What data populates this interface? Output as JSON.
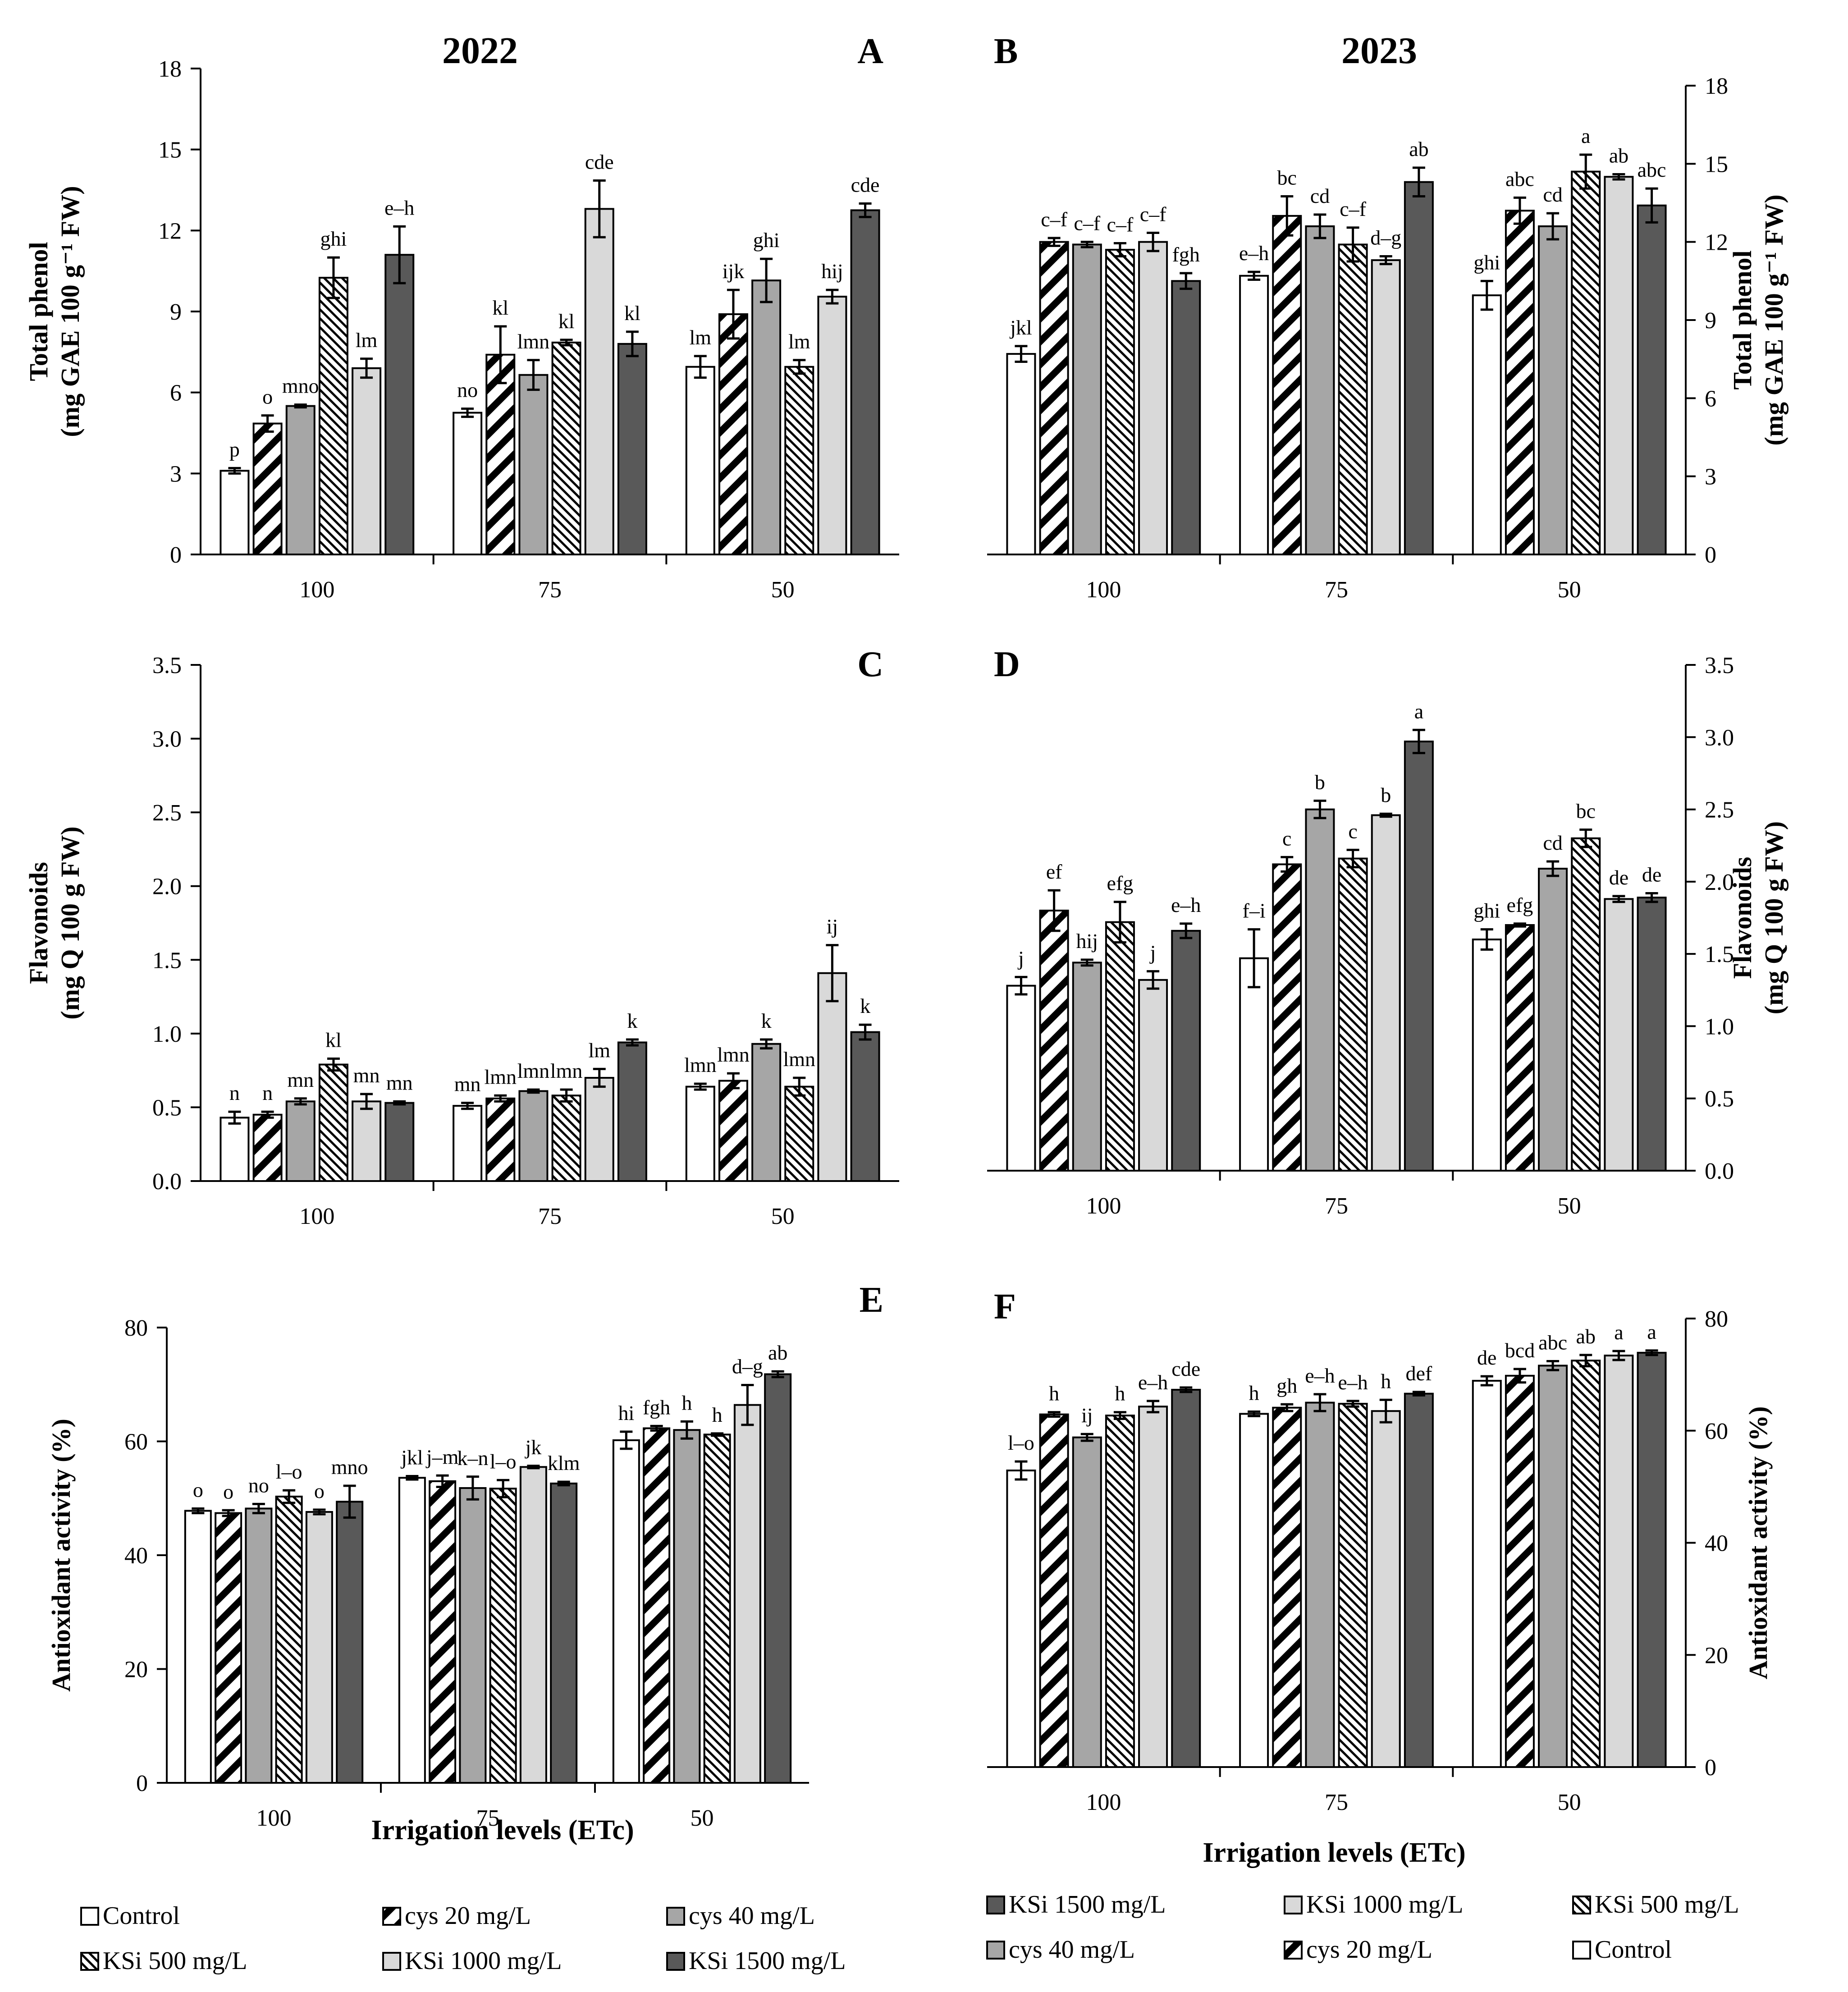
{
  "chart_data": [
    {
      "panel": "A",
      "type": "bar",
      "title": "2022",
      "ylabel": [
        "Total phenol",
        "(mg GAE 100 g⁻¹ FW)"
      ],
      "xlabel": "",
      "ylim": [
        0,
        18
      ],
      "yticks": [
        "0",
        "3",
        "6",
        "9",
        "12",
        "15",
        "18"
      ],
      "categories": [
        "100",
        "75",
        "50"
      ],
      "series": [
        {
          "name": "Control",
          "values": [
            3.1,
            5.25,
            6.95
          ],
          "errors": [
            0.1,
            0.15,
            0.4
          ],
          "letters": [
            "p",
            "no",
            "lm"
          ]
        },
        {
          "name": "cys 20 mg/L",
          "values": [
            4.85,
            7.4,
            8.9
          ],
          "errors": [
            0.3,
            1.05,
            0.9
          ],
          "letters": [
            "o",
            "kl",
            "ijk"
          ]
        },
        {
          "name": "cys 40 mg/L",
          "values": [
            5.5,
            6.65,
            10.15
          ],
          "errors": [
            0.05,
            0.55,
            0.8
          ],
          "letters": [
            "mno",
            "lmn",
            "ghi"
          ]
        },
        {
          "name": "KSi 500 mg/L",
          "values": [
            10.25,
            7.85,
            6.95
          ],
          "errors": [
            0.75,
            0.1,
            0.25
          ],
          "letters": [
            "ghi",
            "kl",
            "lm"
          ]
        },
        {
          "name": "KSi 1000 mg/L",
          "values": [
            6.9,
            12.8,
            9.55
          ],
          "errors": [
            0.35,
            1.05,
            0.25
          ],
          "letters": [
            "lm",
            "cde",
            "hij"
          ]
        },
        {
          "name": "KSi 1500 mg/L",
          "values": [
            11.1,
            7.8,
            12.75
          ],
          "errors": [
            1.05,
            0.45,
            0.25
          ],
          "letters": [
            "e–h",
            "kl",
            "cde"
          ]
        }
      ]
    },
    {
      "panel": "B",
      "type": "bar",
      "title": "2023",
      "ylabel": [
        "Total phenol",
        "(mg GAE 100 g⁻¹ FW)"
      ],
      "xlabel": "",
      "ylim": [
        0,
        18
      ],
      "yticks": [
        "0",
        "3",
        "6",
        "9",
        "12",
        "15",
        "18"
      ],
      "categories": [
        "100",
        "75",
        "50"
      ],
      "series": [
        {
          "name": "Control",
          "values": [
            7.7,
            10.7,
            9.95
          ],
          "errors": [
            0.3,
            0.15,
            0.55
          ],
          "letters": [
            "jkl",
            "e–h",
            "ghi"
          ]
        },
        {
          "name": "cys 20 mg/L",
          "values": [
            12.0,
            13.0,
            13.2
          ],
          "errors": [
            0.15,
            0.75,
            0.5
          ],
          "letters": [
            "c–f",
            "bc",
            "abc"
          ]
        },
        {
          "name": "cys 40 mg/L",
          "values": [
            11.9,
            12.6,
            12.6
          ],
          "errors": [
            0.1,
            0.45,
            0.5
          ],
          "letters": [
            "c–f",
            "cd",
            "cd"
          ]
        },
        {
          "name": "KSi 500 mg/L",
          "values": [
            11.7,
            11.9,
            14.7
          ],
          "errors": [
            0.25,
            0.65,
            0.65
          ],
          "letters": [
            "c–f",
            "c–f",
            "a"
          ]
        },
        {
          "name": "KSi 1000 mg/L",
          "values": [
            12.0,
            11.3,
            14.5
          ],
          "errors": [
            0.35,
            0.15,
            0.1
          ],
          "letters": [
            "c–f",
            "d–g",
            "ab"
          ]
        },
        {
          "name": "KSi 1500 mg/L",
          "values": [
            10.5,
            14.3,
            13.4
          ],
          "errors": [
            0.3,
            0.55,
            0.65
          ],
          "letters": [
            "fgh",
            "ab",
            "abc"
          ]
        }
      ]
    },
    {
      "panel": "C",
      "type": "bar",
      "title": "",
      "ylabel": [
        "Flavonoids",
        "(mg Q 100 g FW)"
      ],
      "xlabel": "",
      "ylim": [
        0,
        3.5
      ],
      "yticks": [
        "0.0",
        "0.5",
        "1.0",
        "1.5",
        "2.0",
        "2.5",
        "3.0",
        "3.5"
      ],
      "categories": [
        "100",
        "75",
        "50"
      ],
      "series": [
        {
          "name": "Control",
          "values": [
            0.43,
            0.51,
            0.64
          ],
          "errors": [
            0.04,
            0.02,
            0.02
          ],
          "letters": [
            "n",
            "mn",
            "lmn"
          ]
        },
        {
          "name": "cys 20 mg/L",
          "values": [
            0.45,
            0.56,
            0.68
          ],
          "errors": [
            0.02,
            0.02,
            0.05
          ],
          "letters": [
            "n",
            "lmn",
            "lmn"
          ]
        },
        {
          "name": "cys 40 mg/L",
          "values": [
            0.54,
            0.61,
            0.93
          ],
          "errors": [
            0.02,
            0.01,
            0.03
          ],
          "letters": [
            "mn",
            "lmn",
            "k"
          ]
        },
        {
          "name": "KSi 500 mg/L",
          "values": [
            0.79,
            0.58,
            0.64
          ],
          "errors": [
            0.04,
            0.04,
            0.06
          ],
          "letters": [
            "kl",
            "lmn",
            "lmn"
          ]
        },
        {
          "name": "KSi 1000 mg/L",
          "values": [
            0.54,
            0.7,
            1.41
          ],
          "errors": [
            0.05,
            0.06,
            0.19
          ],
          "letters": [
            "mn",
            "lm",
            "ij"
          ]
        },
        {
          "name": "KSi 1500 mg/L",
          "values": [
            0.53,
            0.94,
            1.01
          ],
          "errors": [
            0.01,
            0.02,
            0.05
          ],
          "letters": [
            "mn",
            "k",
            "k"
          ]
        }
      ]
    },
    {
      "panel": "D",
      "type": "bar",
      "title": "",
      "ylabel": [
        "Flavonoids",
        "(mg Q 100 g FW)"
      ],
      "xlabel": "",
      "ylim": [
        0,
        3.5
      ],
      "yticks": [
        "0.0",
        "0.5",
        "1.0",
        "1.5",
        "2.0",
        "2.5",
        "3.0",
        "3.5"
      ],
      "categories": [
        "100",
        "75",
        "50"
      ],
      "series": [
        {
          "name": "Control",
          "values": [
            1.28,
            1.47,
            1.6
          ],
          "errors": [
            0.06,
            0.2,
            0.07
          ],
          "letters": [
            "j",
            "f–i",
            "ghi"
          ]
        },
        {
          "name": "cys 20 mg/L",
          "values": [
            1.8,
            2.12,
            1.7
          ],
          "errors": [
            0.14,
            0.05,
            0.01
          ],
          "letters": [
            "ef",
            "c",
            "efg"
          ]
        },
        {
          "name": "cys 40 mg/L",
          "values": [
            1.44,
            2.5,
            2.09
          ],
          "errors": [
            0.02,
            0.06,
            0.05
          ],
          "letters": [
            "hij",
            "b",
            "cd"
          ]
        },
        {
          "name": "KSi 500 mg/L",
          "values": [
            1.72,
            2.16,
            2.3
          ],
          "errors": [
            0.14,
            0.06,
            0.06
          ],
          "letters": [
            "efg",
            "c",
            "bc"
          ]
        },
        {
          "name": "KSi 1000 mg/L",
          "values": [
            1.32,
            2.46,
            1.88
          ],
          "errors": [
            0.06,
            0.01,
            0.02
          ],
          "letters": [
            "j",
            "b",
            "de"
          ]
        },
        {
          "name": "KSi 1500 mg/L",
          "values": [
            1.66,
            2.97,
            1.89
          ],
          "errors": [
            0.05,
            0.08,
            0.03
          ],
          "letters": [
            "e–h",
            "a",
            "de"
          ]
        }
      ]
    },
    {
      "panel": "E",
      "type": "bar",
      "title": "",
      "ylabel": [
        "Antioxidant activity (%)"
      ],
      "xlabel": "Irrigation levels (ETc)",
      "ylim": [
        0,
        80
      ],
      "yticks": [
        "0",
        "20",
        "40",
        "60",
        "80"
      ],
      "categories": [
        "100",
        "75",
        "50"
      ],
      "series": [
        {
          "name": "Control",
          "values": [
            47.8,
            53.6,
            60.2
          ],
          "errors": [
            0.4,
            0.3,
            1.5
          ],
          "letters": [
            "o",
            "jkl",
            "hi"
          ]
        },
        {
          "name": "cys 20 mg/L",
          "values": [
            47.4,
            53.0,
            62.3
          ],
          "errors": [
            0.5,
            1.0,
            0.4
          ],
          "letters": [
            "o",
            "j–m",
            "fgh"
          ]
        },
        {
          "name": "cys 40 mg/L",
          "values": [
            48.2,
            51.8,
            62.0
          ],
          "errors": [
            0.8,
            2.0,
            1.5
          ],
          "letters": [
            "no",
            "k–n",
            "h"
          ]
        },
        {
          "name": "KSi 500 mg/L",
          "values": [
            50.3,
            51.7,
            61.2
          ],
          "errors": [
            1.1,
            1.5,
            0.2
          ],
          "letters": [
            "l–o",
            "l–o",
            "h"
          ]
        },
        {
          "name": "KSi 1000 mg/L",
          "values": [
            47.6,
            55.5,
            66.4
          ],
          "errors": [
            0.4,
            0.2,
            3.5
          ],
          "letters": [
            "o",
            "jk",
            "d–g"
          ]
        },
        {
          "name": "KSi 1500 mg/L",
          "values": [
            49.4,
            52.6,
            71.8
          ],
          "errors": [
            2.8,
            0.3,
            0.5
          ],
          "letters": [
            "mno",
            "klm",
            "ab"
          ]
        }
      ]
    },
    {
      "panel": "F",
      "type": "bar",
      "title": "",
      "ylabel": [
        "Antioxidant activity (%)"
      ],
      "xlabel": "Irrigation levels (ETc)",
      "ylim": [
        0,
        80
      ],
      "yticks": [
        "0",
        "20",
        "40",
        "60",
        "80"
      ],
      "categories": [
        "100",
        "75",
        "50"
      ],
      "series": [
        {
          "name": "Control",
          "values": [
            52.9,
            63.0,
            68.9
          ],
          "errors": [
            1.6,
            0.4,
            0.8
          ],
          "letters": [
            "l–o",
            "h",
            "de"
          ]
        },
        {
          "name": "cys 20 mg/L",
          "values": [
            62.9,
            64.1,
            69.8
          ],
          "errors": [
            0.4,
            0.6,
            1.2
          ],
          "letters": [
            "h",
            "gh",
            "bcd"
          ]
        },
        {
          "name": "cys 40 mg/L",
          "values": [
            58.8,
            65.0,
            71.6
          ],
          "errors": [
            0.6,
            1.5,
            0.8
          ],
          "letters": [
            "ij",
            "e–h",
            "abc"
          ]
        },
        {
          "name": "KSi 500 mg/L",
          "values": [
            62.7,
            64.8,
            72.5
          ],
          "errors": [
            0.6,
            0.5,
            1.0
          ],
          "letters": [
            "h",
            "e–h",
            "ab"
          ]
        },
        {
          "name": "KSi 1000 mg/L",
          "values": [
            64.3,
            63.5,
            73.4
          ],
          "errors": [
            1.0,
            2.0,
            0.8
          ],
          "letters": [
            "e–h",
            "h",
            "a"
          ]
        },
        {
          "name": "KSi 1500 mg/L",
          "values": [
            67.3,
            66.6,
            73.9
          ],
          "errors": [
            0.4,
            0.3,
            0.4
          ],
          "letters": [
            "cde",
            "def",
            "a"
          ]
        }
      ]
    }
  ],
  "legend_left": [
    "Control",
    "cys 20 mg/L",
    "cys 40 mg/L",
    "KSi 500 mg/L",
    "KSi 1000 mg/L",
    "KSi 1500 mg/L"
  ],
  "legend_right": [
    "KSi 1500 mg/L",
    "KSi 1000 mg/L",
    "KSi 500 mg/L",
    "cys 40 mg/L",
    "cys 20 mg/L",
    "Control"
  ],
  "colors": {
    "Control": "#ffffff",
    "cys 40 mg/L": "#a6a6a6",
    "KSi 1000 mg/L": "#d9d9d9",
    "KSi 1500 mg/L": "#595959",
    "outline": "#000000"
  }
}
